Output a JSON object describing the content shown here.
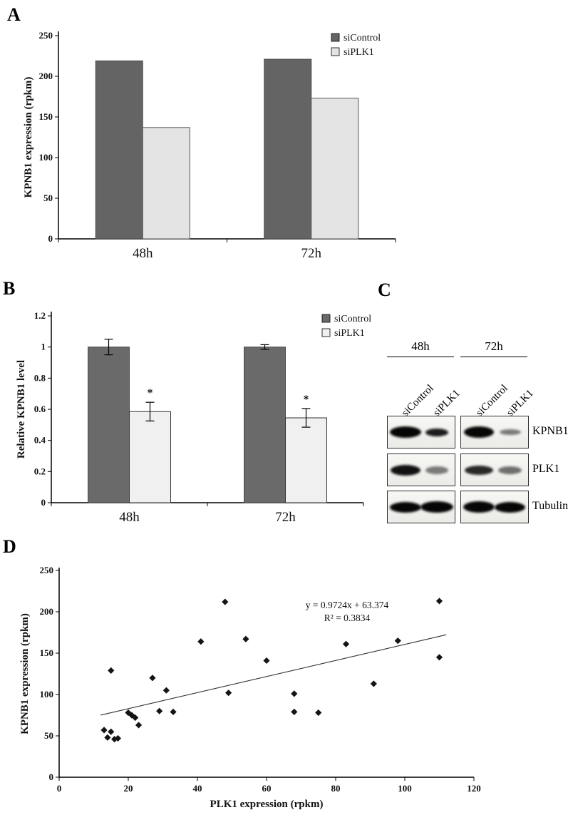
{
  "panels": {
    "a": "A",
    "b": "B",
    "c": "C",
    "d": "D"
  },
  "chart_data": [
    {
      "id": "panelA",
      "type": "bar",
      "title": "",
      "ylabel": "KPNB1 expression (rpkm)",
      "categories": [
        "48h",
        "72h"
      ],
      "series": [
        {
          "name": "siControl",
          "values": [
            219,
            221
          ]
        },
        {
          "name": "siPLK1",
          "values": [
            137,
            173
          ]
        }
      ],
      "ylim": [
        0,
        250
      ],
      "ytick_step": 50,
      "colors": {
        "siControl": "#646464",
        "siPLK1": "#e4e4e4"
      },
      "strokes": {
        "siControl": "#4a4a4a",
        "siPLK1": "#555555"
      },
      "legend_position": "inside-top-right",
      "grid": false
    },
    {
      "id": "panelB",
      "type": "bar",
      "title": "",
      "ylabel": "Relative KPNB1 level",
      "categories": [
        "48h",
        "72h"
      ],
      "series": [
        {
          "name": "siControl",
          "values": [
            1.0,
            1.0
          ],
          "errors": [
            0.05,
            0.015
          ]
        },
        {
          "name": "siPLK1",
          "values": [
            0.585,
            0.545
          ],
          "errors": [
            0.06,
            0.06
          ],
          "annotations": [
            "*",
            "*"
          ]
        }
      ],
      "ylim": [
        0,
        1.2
      ],
      "ytick_step": 0.2,
      "colors": {
        "siControl": "#6a6a6a",
        "siPLK1": "#f0f0f0"
      },
      "strokes": {
        "siControl": "#4a4a4a",
        "siPLK1": "#333333"
      },
      "legend_position": "inside-top-right",
      "grid": false
    },
    {
      "id": "panelD",
      "type": "scatter",
      "title": "",
      "xlabel": "PLK1 expression (rpkm)",
      "ylabel": "KPNB1 expression (rpkm)",
      "xlim": [
        0,
        120
      ],
      "xtick_step": 20,
      "ylim": [
        0,
        250
      ],
      "ytick_step": 50,
      "points": [
        [
          13,
          57
        ],
        [
          15,
          55
        ],
        [
          14,
          48
        ],
        [
          16,
          46
        ],
        [
          17,
          47
        ],
        [
          15,
          129
        ],
        [
          20,
          78
        ],
        [
          21,
          75
        ],
        [
          22,
          72
        ],
        [
          23,
          63
        ],
        [
          27,
          120
        ],
        [
          29,
          80
        ],
        [
          31,
          105
        ],
        [
          33,
          79
        ],
        [
          41,
          164
        ],
        [
          48,
          212
        ],
        [
          49,
          102
        ],
        [
          54,
          167
        ],
        [
          60,
          141
        ],
        [
          68,
          101
        ],
        [
          68,
          79
        ],
        [
          75,
          78
        ],
        [
          83,
          161
        ],
        [
          91,
          113
        ],
        [
          98,
          165
        ],
        [
          110,
          213
        ],
        [
          110,
          145
        ]
      ],
      "trendline": {
        "equation": "y = 0.9724x + 63.374",
        "r2_label": "R² = 0.3834",
        "slope": 0.9724,
        "intercept": 63.374,
        "x_range": [
          12,
          112
        ]
      },
      "grid": false
    }
  ],
  "blot": {
    "time_headers": [
      "48h",
      "72h"
    ],
    "lane_labels": [
      "siControl",
      "siPLK1",
      "siControl",
      "siPLK1"
    ],
    "rows": [
      {
        "protein": "KPNB1",
        "bands": [
          {
            "w": 44,
            "h": 16,
            "o": 1
          },
          {
            "w": 32,
            "h": 11,
            "o": 0.9
          },
          {
            "w": 42,
            "h": 16,
            "o": 1
          },
          {
            "w": 30,
            "h": 8,
            "o": 0.5
          }
        ]
      },
      {
        "protein": "PLK1",
        "bands": [
          {
            "w": 42,
            "h": 15,
            "o": 0.95
          },
          {
            "w": 32,
            "h": 11,
            "o": 0.5
          },
          {
            "w": 40,
            "h": 13,
            "o": 0.85
          },
          {
            "w": 33,
            "h": 11,
            "o": 0.55
          }
        ]
      },
      {
        "protein": "Tubulin",
        "bands": [
          {
            "w": 44,
            "h": 15,
            "o": 1
          },
          {
            "w": 46,
            "h": 16,
            "o": 1
          },
          {
            "w": 44,
            "h": 16,
            "o": 1
          },
          {
            "w": 43,
            "h": 15,
            "o": 1
          }
        ]
      }
    ]
  }
}
